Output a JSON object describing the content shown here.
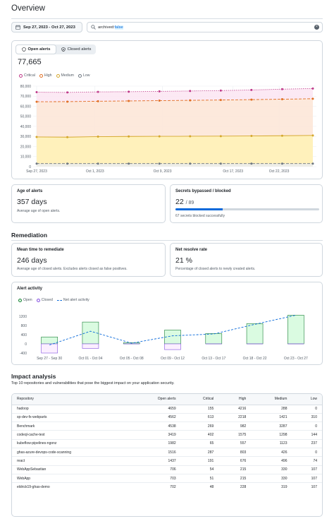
{
  "page": {
    "title": "Overview"
  },
  "filters": {
    "date_range": "Sep 27, 2023 - Oct 27, 2023",
    "search_prefix": "archived:",
    "search_value": "false"
  },
  "alerts_card": {
    "tabs": [
      {
        "label": "Open alerts"
      },
      {
        "label": "Closed alerts"
      }
    ],
    "total": "77,665",
    "legend": [
      {
        "label": "Critical",
        "color": "#bf3989"
      },
      {
        "label": "High",
        "color": "#e16f24"
      },
      {
        "label": "Medium",
        "color": "#d4a72c"
      },
      {
        "label": "Low",
        "color": "#6e7781"
      }
    ]
  },
  "age_card": {
    "title": "Age of alerts",
    "value": "357 days",
    "subtitle": "Average age of open alerts."
  },
  "secrets_card": {
    "title": "Secrets bypassed / blocked",
    "value": "22",
    "total": "/ 89",
    "progress": 0.33,
    "subtitle": "67 secrets blocked successfully"
  },
  "remediation": {
    "heading": "Remediation",
    "mttr": {
      "title": "Mean time to remediate",
      "value": "246 days",
      "subtitle": "Average age of closed alerts. Excludes alerts closed as false positives."
    },
    "net_rate": {
      "title": "Net resolve rate",
      "value": "21 %",
      "subtitle": "Percentage of closed alerts to newly created alerts."
    },
    "activity": {
      "title": "Alert activity",
      "legend": [
        {
          "label": "Open"
        },
        {
          "label": "Closed"
        },
        {
          "label": "Net alert activity"
        }
      ]
    }
  },
  "impact": {
    "heading": "Impact analysis",
    "subtitle": "Top 10 repositories and vulnerabilities that pose the biggest impact on your application security.",
    "columns": [
      "Repository",
      "Open alerts",
      "Critical",
      "High",
      "Medium",
      "Low"
    ],
    "rows": [
      [
        "hadoop",
        "4659",
        "155",
        "4216",
        "288",
        "0"
      ],
      [
        "sp-dev-fx-webparts",
        "4562",
        "613",
        "2218",
        "1421",
        "310"
      ],
      [
        "Benchmark",
        "4538",
        "269",
        "982",
        "3287",
        "0"
      ],
      [
        "codeql-cache-test",
        "3419",
        "402",
        "1575",
        "1298",
        "144"
      ],
      [
        "kubeflow-pipelines-ngonz",
        "1982",
        "65",
        "557",
        "1123",
        "237"
      ],
      [
        "ghas-azure-devops-code-scanning",
        "1516",
        "287",
        "803",
        "426",
        "0"
      ],
      [
        "react",
        "1437",
        "191",
        "676",
        "496",
        "74"
      ],
      [
        "WebAppSebastian",
        "706",
        "54",
        "215",
        "330",
        "107"
      ],
      [
        "WebApp",
        "703",
        "51",
        "215",
        "330",
        "107"
      ],
      [
        "eldrick19-ghas-demo",
        "702",
        "48",
        "228",
        "319",
        "107"
      ]
    ]
  },
  "chart_data": [
    {
      "type": "area",
      "x_labels": [
        "Sep 27, 2023",
        "Oct 1, 2023",
        "Oct 9, 2023",
        "Oct 17, 2023",
        "Oct 22, 2023"
      ],
      "ylim": [
        0,
        80000
      ],
      "yticks": [
        "80,000",
        "70,000",
        "60,000",
        "50,000",
        "40,000",
        "30,000",
        "20,000",
        "10,000",
        "0"
      ],
      "series": [
        {
          "name": "Critical",
          "color": "#bf3989",
          "values": [
            74000,
            73800,
            74300,
            74500,
            74800,
            75200,
            75600,
            76200,
            77000,
            77665
          ]
        },
        {
          "name": "High",
          "color": "#e16f24",
          "values": [
            64500,
            64600,
            65000,
            65300,
            65600,
            65900,
            66200,
            66600,
            67000,
            67500
          ]
        },
        {
          "name": "Medium",
          "color": "#d4a72c",
          "values": [
            29500,
            29300,
            29800,
            30000,
            30100,
            30200,
            30300,
            30500,
            30700,
            31000
          ]
        },
        {
          "name": "Low",
          "color": "#6e7781",
          "values": [
            3000,
            3000,
            3000,
            3000,
            3000,
            3000,
            3000,
            3000,
            3000,
            3000
          ]
        }
      ]
    },
    {
      "type": "bar",
      "categories": [
        "Sep 27 - Sep 30",
        "Oct 01 - Oct 04",
        "Oct 05 - Oct 08",
        "Oct 09 - Oct 12",
        "Oct 13 - Oct 17",
        "Oct 18 - Oct 22",
        "Oct 23 - Oct 27"
      ],
      "ylim": [
        -400,
        1200
      ],
      "yticks": [
        "1200",
        "1000",
        "800",
        "600",
        "400",
        "200",
        "0",
        "-200",
        "-400"
      ],
      "series": [
        {
          "name": "Open",
          "color": "#1a7f37",
          "values": [
            300,
            950,
            50,
            600,
            450,
            880,
            1250
          ]
        },
        {
          "name": "Closed",
          "color": "#8250df",
          "values": [
            -400,
            -200,
            0,
            -250,
            0,
            0,
            0
          ]
        },
        {
          "name": "Net alert activity",
          "color": "#0969da",
          "values": [
            -50,
            550,
            30,
            350,
            430,
            850,
            1250
          ]
        }
      ]
    }
  ]
}
